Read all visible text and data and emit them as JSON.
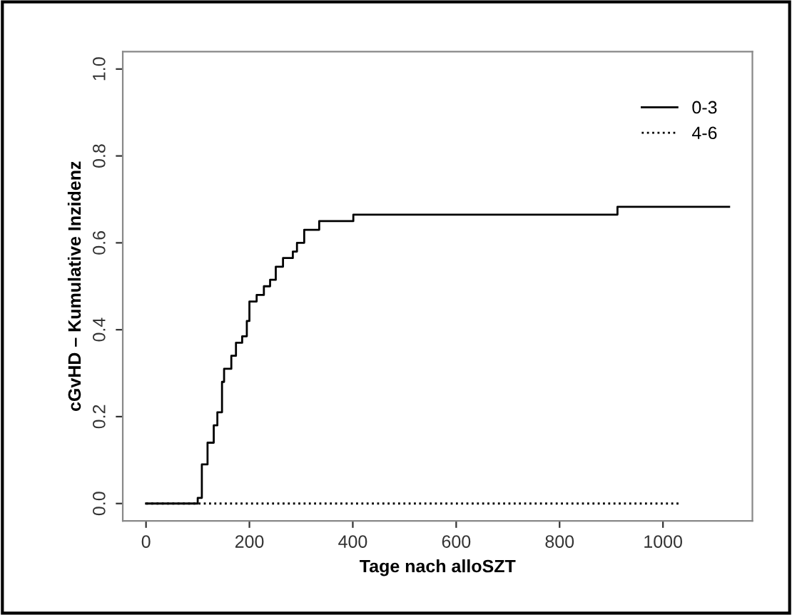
{
  "chart_data": {
    "type": "step",
    "xlabel": "Tage nach alloSZT",
    "ylabel": "cGvHD – Kumulative Inzidenz",
    "series": [
      {
        "name": "0-3",
        "color": "#000000",
        "line_style": "solid",
        "x": [
          0,
          100,
          108,
          119,
          131,
          138,
          147,
          151,
          165,
          174,
          186,
          195,
          200,
          214,
          228,
          240,
          251,
          265,
          284,
          292,
          306,
          335,
          401,
          912,
          1128
        ],
        "values": [
          0,
          0.013,
          0.09,
          0.14,
          0.18,
          0.21,
          0.28,
          0.31,
          0.34,
          0.37,
          0.385,
          0.42,
          0.465,
          0.48,
          0.5,
          0.515,
          0.545,
          0.565,
          0.58,
          0.6,
          0.63,
          0.65,
          0.665,
          0.683,
          0.683
        ]
      },
      {
        "name": "4-6",
        "color": "#000000",
        "line_style": "dotted",
        "x": [
          0,
          1034
        ],
        "values": [
          0,
          0
        ]
      }
    ],
    "xlim": [
      -45,
      1173
    ],
    "ylim": [
      -0.04,
      1.04
    ],
    "xticks": [
      0,
      200,
      400,
      600,
      800,
      1000
    ],
    "yticks": [
      {
        "value": 0,
        "label": "0.0"
      },
      0.2,
      0.4,
      0.6,
      0.8,
      {
        "value": 1,
        "label": "1.0"
      }
    ],
    "legend": "top right",
    "grid": false
  }
}
